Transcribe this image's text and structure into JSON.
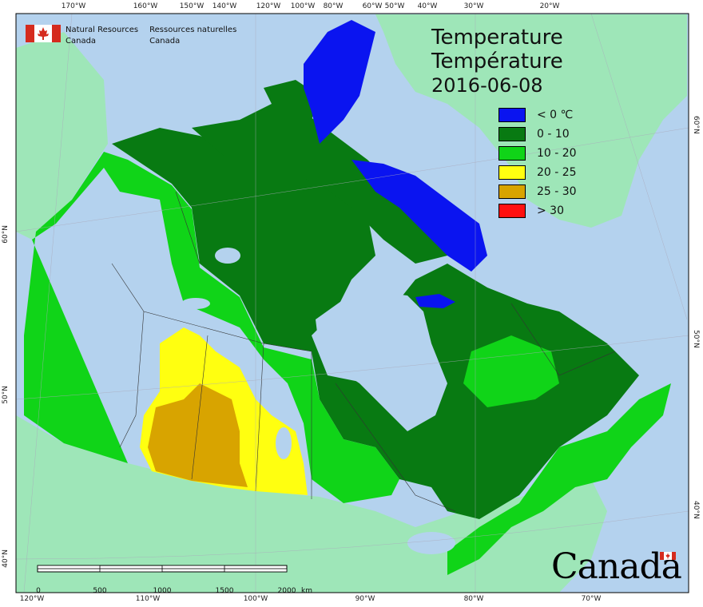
{
  "title": {
    "en": "Temperature",
    "fr": "Température",
    "date": "2016-06-08"
  },
  "legend": [
    {
      "label": "< 0 ℃",
      "color": "#0a14f0"
    },
    {
      "label": "0 - 10",
      "color": "#087a12"
    },
    {
      "label": "10 - 20",
      "color": "#10d418"
    },
    {
      "label": "20 - 25",
      "color": "#ffff10"
    },
    {
      "label": "25 - 30",
      "color": "#d8a400"
    },
    {
      "label": "> 30",
      "color": "#ff1010"
    }
  ],
  "agency": {
    "en_line1": "Natural Resources",
    "en_line2": "Canada",
    "fr_line1": "Ressources naturelles",
    "fr_line2": "Canada"
  },
  "wordmark": "Canada",
  "scale": {
    "labels": [
      "0",
      "500",
      "1000",
      "1500",
      "2000"
    ],
    "unit": "km"
  },
  "graticule": {
    "top": [
      "170°W",
      "160°W",
      "150°W",
      "140°W",
      "120°W",
      "100°W",
      "80°W",
      "60°W",
      "50°W",
      "40°W",
      "30°W",
      "20°W"
    ],
    "bottom": [
      "120°W",
      "110°W",
      "100°W",
      "90°W",
      "80°W",
      "70°W"
    ],
    "left": [
      "60°N",
      "50°N",
      "40°N"
    ],
    "right": [
      "60°N",
      "50°N",
      "40°N"
    ]
  },
  "colors": {
    "ocean": "#b4d2ee",
    "foreign_land": "#9ee6b8",
    "water": "#b4d2ee"
  }
}
